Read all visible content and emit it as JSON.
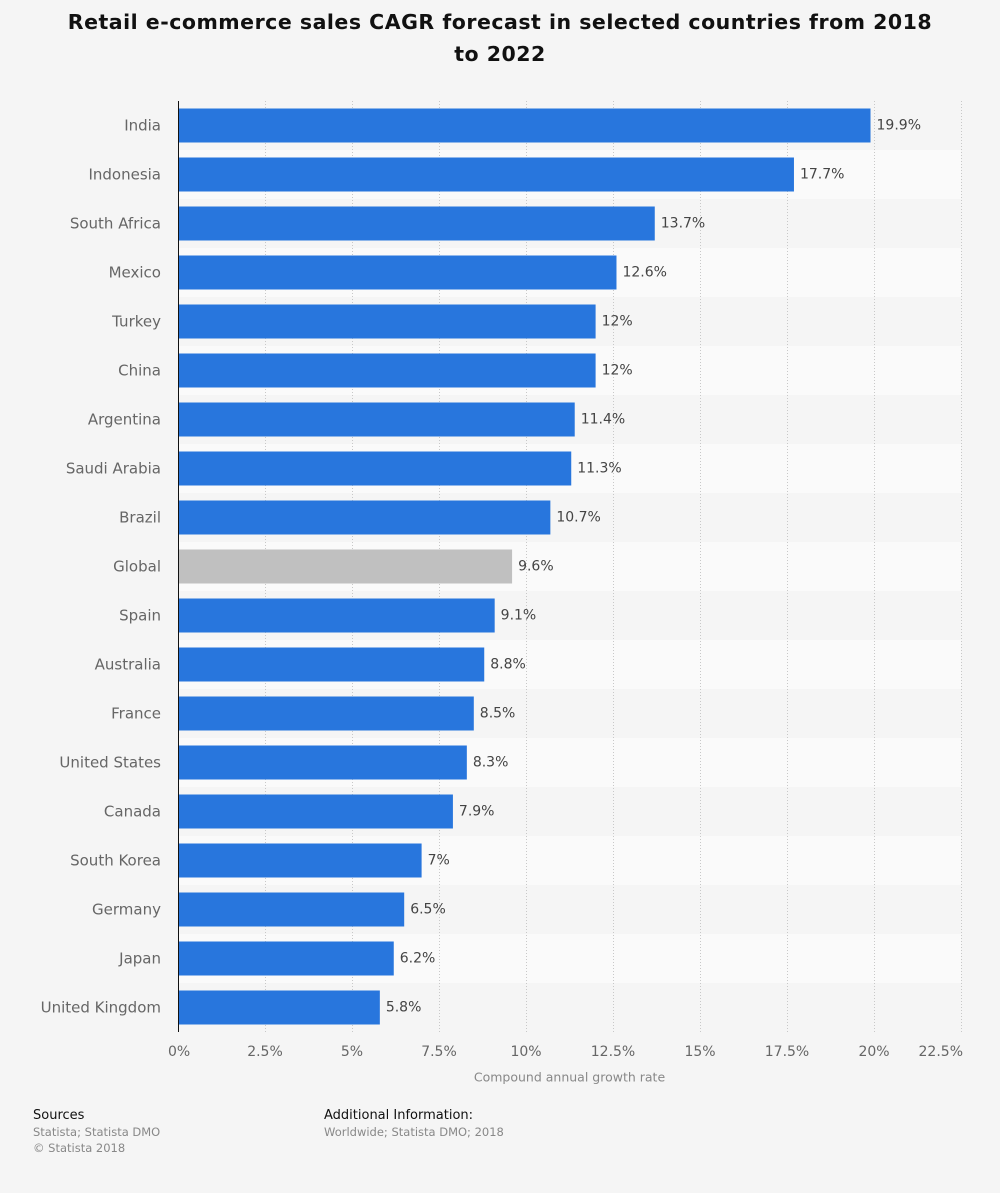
{
  "chart_data": {
    "type": "bar",
    "orientation": "horizontal",
    "title": "Retail e-commerce sales CAGR forecast in selected countries from 2018 to 2022",
    "xlabel": "Compound annual growth rate",
    "ylabel": "",
    "categories": [
      "India",
      "Indonesia",
      "South Africa",
      "Mexico",
      "Turkey",
      "China",
      "Argentina",
      "Saudi Arabia",
      "Brazil",
      "Global",
      "Spain",
      "Australia",
      "France",
      "United States",
      "Canada",
      "South Korea",
      "Germany",
      "Japan",
      "United Kingdom"
    ],
    "values": [
      19.9,
      17.7,
      13.7,
      12.6,
      12,
      12,
      11.4,
      11.3,
      10.7,
      9.6,
      9.1,
      8.8,
      8.5,
      8.3,
      7.9,
      7,
      6.5,
      6.2,
      5.8
    ],
    "value_labels": [
      "19.9%",
      "17.7%",
      "13.7%",
      "12.6%",
      "12%",
      "12%",
      "11.4%",
      "11.3%",
      "10.7%",
      "9.6%",
      "9.1%",
      "8.8%",
      "8.5%",
      "8.3%",
      "7.9%",
      "7%",
      "6.5%",
      "6.2%",
      "5.8%"
    ],
    "xlim": [
      0,
      22.5
    ],
    "x_ticks": [
      0,
      2.5,
      5,
      7.5,
      10,
      12.5,
      15,
      17.5,
      20,
      22.5
    ],
    "x_tick_labels": [
      "0%",
      "2.5%",
      "5%",
      "7.5%",
      "10%",
      "12.5%",
      "15%",
      "17.5%",
      "20%",
      "22.5%"
    ],
    "grid": true,
    "bar_color": "#2876dd",
    "highlight_category": "Global",
    "highlight_color": "#c0c0c0"
  },
  "footer": {
    "sources_heading": "Sources",
    "sources_lines": [
      "Statista; Statista DMO",
      "© Statista 2018"
    ],
    "info_heading": "Additional Information:",
    "info_lines": [
      "Worldwide; Statista DMO; 2018"
    ]
  }
}
